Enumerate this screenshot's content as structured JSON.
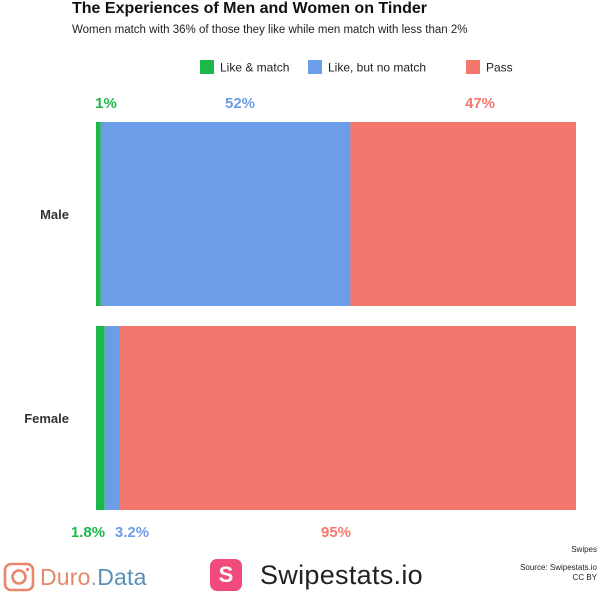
{
  "title": "The Experiences of Men and Women on Tinder",
  "subtitle": "Women match with 36% of those they like while men match with less than 2%",
  "colors": {
    "like_match": "#1db74a",
    "like_no_match": "#6b9de8",
    "pass": "#f4776e"
  },
  "chart_data": {
    "type": "bar",
    "orientation": "horizontal",
    "stacked": true,
    "normalized": true,
    "categories": [
      "Male",
      "Female"
    ],
    "series": [
      {
        "name": "Like & match",
        "values": [
          1,
          1.8
        ],
        "labels": [
          "1%",
          "1.8%"
        ]
      },
      {
        "name": "Like, but no match",
        "values": [
          52,
          3.2
        ],
        "labels": [
          "52%",
          "3.2%"
        ]
      },
      {
        "name": "Pass",
        "values": [
          47,
          95
        ],
        "labels": [
          "47%",
          "95%"
        ]
      }
    ],
    "legend": "top-right",
    "data_labels": {
      "Male": "above",
      "Female": "below"
    }
  },
  "footer": {
    "note_top": "Swipes",
    "source": "Source: Swipestats.io",
    "license": "CC BY"
  },
  "logos": {
    "duro_first": "Duro",
    "duro_dot": ".",
    "duro_second": "Data",
    "swipestats_mark": "S",
    "swipestats_name": "Swipestats.io"
  }
}
